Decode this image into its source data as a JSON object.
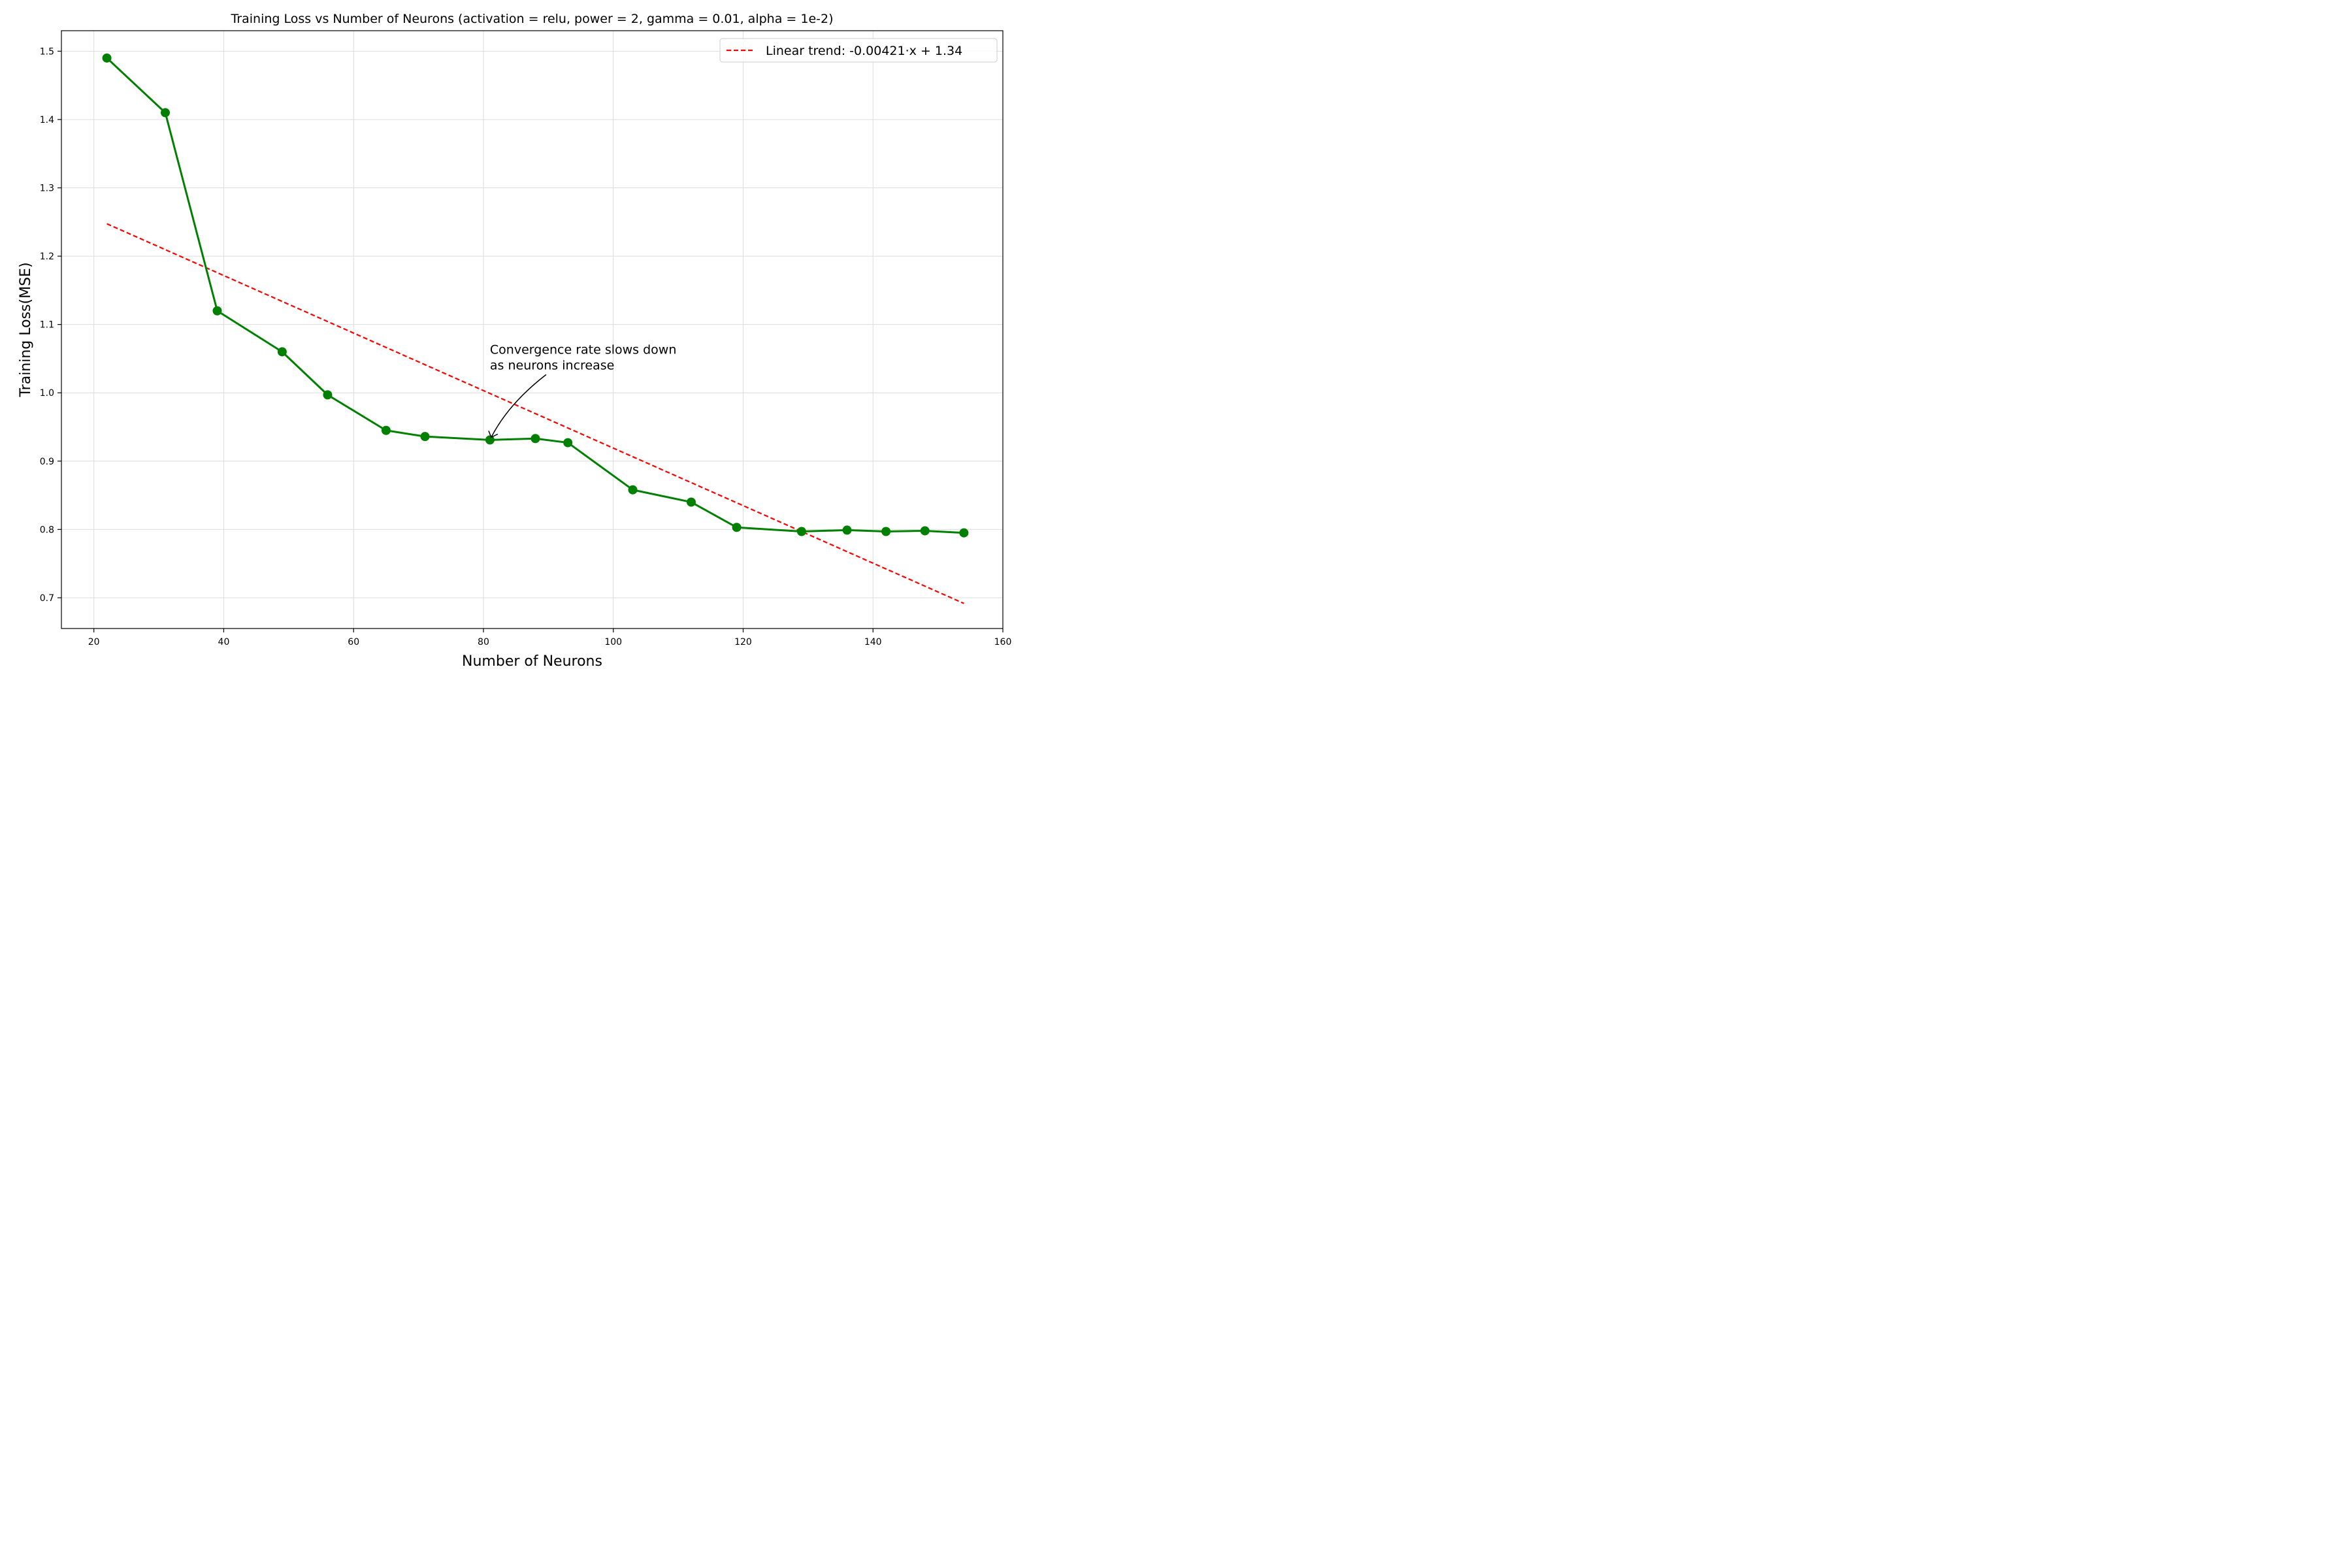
{
  "chart_data": {
    "type": "line",
    "title": "Training Loss vs Number of Neurons (activation = relu, power = 2, gamma = 0.01, alpha = 1e-2)",
    "xlabel": "Number of Neurons",
    "ylabel": "Training Loss(MSE)",
    "xlim": [
      15,
      160
    ],
    "ylim": [
      0.655,
      1.53
    ],
    "xticks": [
      20,
      40,
      60,
      80,
      100,
      120,
      140,
      160
    ],
    "xtick_labels": [
      "20",
      "40",
      "60",
      "80",
      "100",
      "120",
      "140",
      "160"
    ],
    "yticks": [
      0.7,
      0.8,
      0.9,
      1.0,
      1.1,
      1.2,
      1.3,
      1.4,
      1.5
    ],
    "ytick_labels": [
      "0.7",
      "0.8",
      "0.9",
      "1.0",
      "1.1",
      "1.2",
      "1.3",
      "1.4",
      "1.5"
    ],
    "grid": true,
    "legend_position": "top-right",
    "series": [
      {
        "color": "#008000",
        "style": "solid-with-markers",
        "x": [
          22,
          31,
          39,
          49,
          56,
          65,
          71,
          81,
          88,
          93,
          103,
          112,
          119,
          129,
          136,
          142,
          148,
          154
        ],
        "y": [
          1.49,
          1.41,
          1.12,
          1.06,
          0.997,
          0.945,
          0.936,
          0.931,
          0.933,
          0.927,
          0.858,
          0.84,
          0.803,
          0.797,
          0.799,
          0.797,
          0.798,
          0.795
        ]
      },
      {
        "name": "Linear trend: -0.00421·x + 1.34",
        "color": "#ff0000",
        "style": "dashed",
        "x": [
          22,
          154
        ],
        "y": [
          1.2474,
          0.6917
        ]
      }
    ],
    "annotation": {
      "lines": [
        "Convergence rate slows down",
        "as neurons increase"
      ],
      "point": {
        "x": 81,
        "y": 0.931
      },
      "text_anchor": {
        "x": 81,
        "y": 1.04
      }
    }
  }
}
